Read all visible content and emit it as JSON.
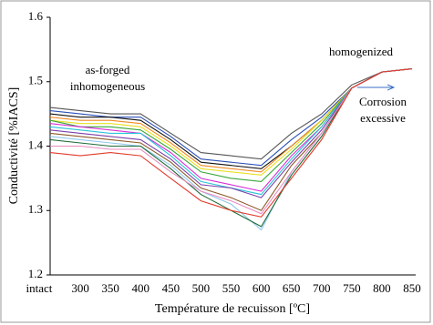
{
  "chart_data": {
    "type": "line",
    "xlabel": "Température de recuisson  [ºC]",
    "ylabel": "Conductivité  [%IACS]",
    "categories": [
      "intact",
      "300",
      "350",
      "400",
      "450",
      "500",
      "550",
      "600",
      "650",
      "700",
      "750",
      "800",
      "850"
    ],
    "ylim": [
      1.2,
      1.6
    ],
    "yticks": [
      1.2,
      1.3,
      1.4,
      1.5,
      1.6
    ],
    "grid": false,
    "annotations": [
      "as-forged",
      "inhomogeneous",
      "homogenized",
      "Corrosion",
      "excessive"
    ],
    "series": [
      {
        "color": "#555555",
        "values": [
          1.46,
          1.455,
          1.45,
          1.45,
          1.42,
          1.39,
          1.385,
          1.38,
          1.42,
          1.45,
          1.495,
          1.515,
          1.52
        ]
      },
      {
        "color": "#2a4fb8",
        "values": [
          1.455,
          1.45,
          1.445,
          1.445,
          1.415,
          1.38,
          1.375,
          1.37,
          1.41,
          1.445,
          1.49,
          1.515,
          1.52
        ]
      },
      {
        "color": "#111111",
        "values": [
          1.45,
          1.445,
          1.445,
          1.44,
          1.41,
          1.375,
          1.37,
          1.365,
          1.4,
          1.44,
          1.49,
          1.515,
          1.52
        ]
      },
      {
        "color": "#f08a24",
        "values": [
          1.445,
          1.44,
          1.44,
          1.435,
          1.405,
          1.37,
          1.365,
          1.36,
          1.4,
          1.44,
          1.49,
          1.515,
          1.52
        ]
      },
      {
        "color": "#e8e020",
        "values": [
          1.44,
          1.435,
          1.435,
          1.43,
          1.4,
          1.365,
          1.36,
          1.355,
          1.395,
          1.44,
          1.49,
          1.515,
          1.52
        ]
      },
      {
        "color": "#3aa63a",
        "values": [
          1.44,
          1.43,
          1.43,
          1.425,
          1.395,
          1.36,
          1.35,
          1.345,
          1.39,
          1.435,
          1.49,
          1.515,
          1.52
        ]
      },
      {
        "color": "#d62fd6",
        "values": [
          1.435,
          1.43,
          1.425,
          1.42,
          1.39,
          1.35,
          1.34,
          1.33,
          1.385,
          1.43,
          1.49,
          1.515,
          1.52
        ]
      },
      {
        "color": "#29c4d8",
        "values": [
          1.43,
          1.425,
          1.42,
          1.42,
          1.385,
          1.345,
          1.335,
          1.325,
          1.38,
          1.43,
          1.49,
          1.515,
          1.52
        ]
      },
      {
        "color": "#7a3fa8",
        "values": [
          1.425,
          1.42,
          1.415,
          1.41,
          1.38,
          1.34,
          1.335,
          1.32,
          1.375,
          1.425,
          1.49,
          1.515,
          1.52
        ]
      },
      {
        "color": "#8b5a2b",
        "values": [
          1.42,
          1.415,
          1.41,
          1.405,
          1.375,
          1.335,
          1.32,
          1.3,
          1.37,
          1.42,
          1.49,
          1.515,
          1.52
        ]
      },
      {
        "color": "#8fc8ee",
        "values": [
          1.415,
          1.41,
          1.405,
          1.4,
          1.37,
          1.33,
          1.31,
          1.27,
          1.36,
          1.42,
          1.49,
          1.515,
          1.52
        ]
      },
      {
        "color": "#1f6b3a",
        "values": [
          1.41,
          1.405,
          1.4,
          1.4,
          1.365,
          1.325,
          1.3,
          1.275,
          1.355,
          1.415,
          1.49,
          1.515,
          1.52
        ]
      },
      {
        "color": "#e88cc0",
        "values": [
          1.4,
          1.4,
          1.395,
          1.395,
          1.36,
          1.33,
          1.315,
          1.295,
          1.36,
          1.42,
          1.49,
          1.515,
          1.52
        ]
      },
      {
        "color": "#e03a2a",
        "values": [
          1.39,
          1.385,
          1.39,
          1.385,
          1.35,
          1.315,
          1.3,
          1.29,
          1.35,
          1.41,
          1.49,
          1.515,
          1.52
        ]
      }
    ]
  }
}
